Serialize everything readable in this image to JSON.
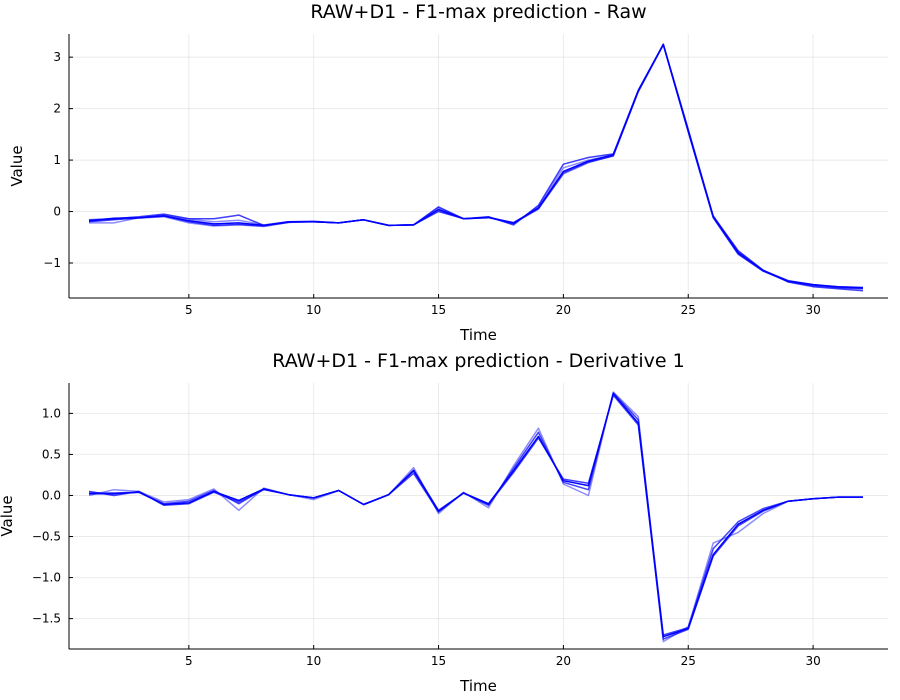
{
  "chart_data": [
    {
      "type": "line",
      "title": "RAW+D1 - F1-max prediction - Raw",
      "xlabel": "Time",
      "ylabel": "Value",
      "xlim": [
        0.2,
        33.0
      ],
      "ylim": [
        -1.68,
        3.45
      ],
      "xticks": [
        5,
        10,
        15,
        20,
        25,
        30
      ],
      "yticks": [
        -1,
        0,
        1,
        2,
        3
      ],
      "grid": true,
      "legend": "none",
      "color": "#0000ff",
      "x": [
        1,
        2,
        3,
        4,
        5,
        6,
        7,
        8,
        9,
        10,
        11,
        12,
        13,
        14,
        15,
        16,
        17,
        18,
        19,
        20,
        21,
        22,
        23,
        24,
        25,
        26,
        27,
        28,
        29,
        30,
        31,
        32
      ],
      "series": [
        {
          "values": [
            -0.18,
            -0.13,
            -0.12,
            -0.08,
            -0.18,
            -0.24,
            -0.22,
            -0.27,
            -0.2,
            -0.2,
            -0.22,
            -0.16,
            -0.27,
            -0.26,
            0.04,
            -0.14,
            -0.11,
            -0.22,
            0.07,
            0.78,
            0.98,
            1.1,
            2.35,
            3.25,
            1.57,
            -0.1,
            -0.8,
            -1.15,
            -1.35,
            -1.42,
            -1.46,
            -1.48
          ]
        },
        {
          "values": [
            -0.2,
            -0.16,
            -0.12,
            -0.09,
            -0.2,
            -0.27,
            -0.25,
            -0.28,
            -0.21,
            -0.2,
            -0.22,
            -0.16,
            -0.27,
            -0.26,
            0.0,
            -0.14,
            -0.12,
            -0.23,
            0.05,
            0.75,
            0.96,
            1.08,
            2.33,
            3.24,
            1.55,
            -0.12,
            -0.83,
            -1.16,
            -1.36,
            -1.44,
            -1.48,
            -1.5
          ]
        },
        {
          "values": [
            -0.22,
            -0.22,
            -0.12,
            -0.07,
            -0.15,
            -0.2,
            -0.17,
            -0.26,
            -0.2,
            -0.2,
            -0.22,
            -0.16,
            -0.27,
            -0.26,
            0.07,
            -0.14,
            -0.11,
            -0.24,
            0.1,
            0.85,
            1.0,
            1.1,
            2.34,
            3.25,
            1.58,
            -0.08,
            -0.78,
            -1.14,
            -1.34,
            -1.42,
            -1.47,
            -1.49
          ]
        },
        {
          "values": [
            -0.16,
            -0.14,
            -0.1,
            -0.05,
            -0.14,
            -0.14,
            -0.07,
            -0.27,
            -0.2,
            -0.19,
            -0.22,
            -0.16,
            -0.27,
            -0.26,
            0.09,
            -0.14,
            -0.1,
            -0.26,
            0.12,
            0.92,
            1.05,
            1.12,
            2.36,
            3.25,
            1.6,
            -0.09,
            -0.76,
            -1.14,
            -1.37,
            -1.46,
            -1.5,
            -1.54
          ]
        },
        {
          "values": [
            -0.19,
            -0.15,
            -0.13,
            -0.1,
            -0.22,
            -0.28,
            -0.26,
            -0.29,
            -0.21,
            -0.2,
            -0.22,
            -0.16,
            -0.27,
            -0.26,
            0.02,
            -0.14,
            -0.12,
            -0.21,
            0.06,
            0.73,
            0.95,
            1.09,
            2.34,
            3.24,
            1.56,
            -0.11,
            -0.82,
            -1.15,
            -1.35,
            -1.43,
            -1.46,
            -1.47
          ]
        }
      ]
    },
    {
      "type": "line",
      "title": "RAW+D1 - F1-max prediction - Derivative 1",
      "xlabel": "Time",
      "ylabel": "Value",
      "xlim": [
        0.2,
        33.0
      ],
      "ylim": [
        -1.87,
        1.37
      ],
      "xticks": [
        5,
        10,
        15,
        20,
        25,
        30
      ],
      "yticks": [
        -1.5,
        -1.0,
        -0.5,
        0.0,
        0.5,
        1.0
      ],
      "ytick_labels": [
        "−1.5",
        "−1.0",
        "−0.5",
        "0.0",
        "0.5",
        "1.0"
      ],
      "grid": true,
      "legend": "none",
      "color": "#0000ff",
      "x": [
        1,
        2,
        3,
        4,
        5,
        6,
        7,
        8,
        9,
        10,
        11,
        12,
        13,
        14,
        15,
        16,
        17,
        18,
        19,
        20,
        21,
        22,
        23,
        24,
        25,
        26,
        27,
        28,
        29,
        30,
        31,
        32
      ],
      "series": [
        {
          "values": [
            0.02,
            0.02,
            0.04,
            -0.11,
            -0.09,
            0.05,
            -0.06,
            0.08,
            0.01,
            -0.03,
            0.06,
            -0.11,
            0.01,
            0.3,
            -0.19,
            0.03,
            -0.1,
            0.3,
            0.72,
            0.18,
            0.12,
            1.24,
            0.88,
            -1.72,
            -1.62,
            -0.72,
            -0.35,
            -0.18,
            -0.07,
            -0.04,
            -0.02,
            -0.02
          ]
        },
        {
          "values": [
            0.05,
            0.0,
            0.05,
            -0.12,
            -0.1,
            0.04,
            -0.08,
            0.07,
            0.01,
            -0.03,
            0.06,
            -0.11,
            0.01,
            0.27,
            -0.2,
            0.03,
            -0.11,
            0.28,
            0.7,
            0.2,
            0.15,
            1.22,
            0.86,
            -1.75,
            -1.63,
            -0.74,
            -0.37,
            -0.19,
            -0.07,
            -0.04,
            -0.02,
            -0.02
          ]
        },
        {
          "values": [
            0.0,
            0.07,
            0.05,
            -0.08,
            -0.05,
            0.08,
            -0.18,
            0.09,
            0.01,
            -0.05,
            0.06,
            -0.11,
            0.01,
            0.34,
            -0.22,
            0.04,
            -0.15,
            0.36,
            0.82,
            0.14,
            0.0,
            1.26,
            0.96,
            -1.78,
            -1.6,
            -0.58,
            -0.45,
            -0.22,
            -0.07,
            -0.04,
            -0.02,
            -0.02
          ]
        },
        {
          "values": [
            0.03,
            0.03,
            0.04,
            -0.1,
            -0.07,
            0.06,
            -0.1,
            0.08,
            0.01,
            -0.03,
            0.06,
            -0.11,
            0.01,
            0.31,
            -0.18,
            0.03,
            -0.12,
            0.33,
            0.77,
            0.16,
            0.07,
            1.25,
            0.92,
            -1.7,
            -1.61,
            -0.65,
            -0.32,
            -0.16,
            -0.07,
            -0.04,
            -0.02,
            -0.02
          ]
        }
      ]
    }
  ]
}
